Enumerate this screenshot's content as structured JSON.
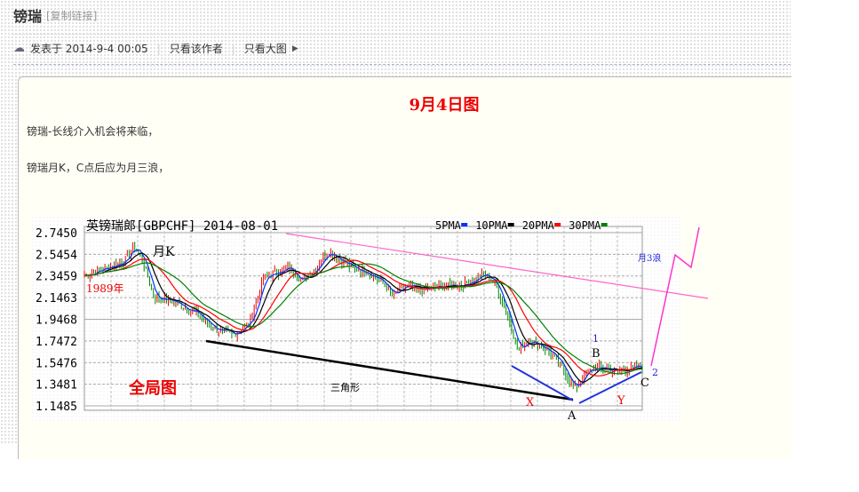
{
  "post": {
    "title": "镑瑞",
    "copy_link": "[复制链接]",
    "posted_label": "发表于 2014-9-4 00:05",
    "author_only": "只看该作者",
    "big_image": "只看大图",
    "heading": "9月4日图",
    "paragraphs": [
      "镑瑞-长线介入机会将来临，",
      "镑瑞月K，C点后应为月三浪，"
    ]
  },
  "chart_data": {
    "type": "candlestick",
    "title": "英镑瑞郎[GBPCHF] 2014-08-01",
    "legend": [
      "5PMA",
      "10PMA",
      "20PMA",
      "30PMA"
    ],
    "legend_colors": [
      "#0033ff",
      "#000000",
      "#ff0000",
      "#008000"
    ],
    "legend_placement": "top-right",
    "y_ticks": [
      "2.7450",
      "2.5454",
      "2.3459",
      "2.1463",
      "1.9468",
      "1.7472",
      "1.5476",
      "1.3481",
      "1.1485"
    ],
    "ylim": [
      1.1485,
      2.745
    ],
    "grid": true,
    "x_range": [
      1989,
      2014.6
    ],
    "price_path": [
      [
        1989.0,
        2.35
      ],
      [
        1990.0,
        2.42
      ],
      [
        1990.8,
        2.48
      ],
      [
        1991.3,
        2.62
      ],
      [
        1991.7,
        2.48
      ],
      [
        1992.2,
        2.15
      ],
      [
        1993.0,
        2.12
      ],
      [
        1994.0,
        2.02
      ],
      [
        1995.0,
        1.86
      ],
      [
        1995.8,
        1.8
      ],
      [
        1996.6,
        1.92
      ],
      [
        1997.2,
        2.32
      ],
      [
        1997.8,
        2.38
      ],
      [
        1998.4,
        2.42
      ],
      [
        1999.0,
        2.3
      ],
      [
        1999.6,
        2.42
      ],
      [
        2000.2,
        2.58
      ],
      [
        2000.7,
        2.5
      ],
      [
        2001.3,
        2.42
      ],
      [
        2002.0,
        2.38
      ],
      [
        2002.6,
        2.3
      ],
      [
        2003.2,
        2.16
      ],
      [
        2003.7,
        2.25
      ],
      [
        2004.5,
        2.22
      ],
      [
        2005.5,
        2.25
      ],
      [
        2006.5,
        2.27
      ],
      [
        2007.3,
        2.36
      ],
      [
        2007.8,
        2.3
      ],
      [
        2008.4,
        2.0
      ],
      [
        2008.9,
        1.66
      ],
      [
        2009.4,
        1.76
      ],
      [
        2010.3,
        1.66
      ],
      [
        2011.0,
        1.48
      ],
      [
        2011.5,
        1.3
      ],
      [
        2012.0,
        1.46
      ],
      [
        2012.6,
        1.5
      ],
      [
        2013.4,
        1.47
      ],
      [
        2014.6,
        1.51
      ]
    ],
    "annotations": {
      "month_k": "月K",
      "start_year": "1989年",
      "overview": "全局图",
      "triangle": "三角形",
      "X": "X",
      "A": "A",
      "Y": "Y",
      "B": "B",
      "C": "C",
      "wave1": "1",
      "wave2": "2",
      "wave3": "月3浪"
    }
  }
}
